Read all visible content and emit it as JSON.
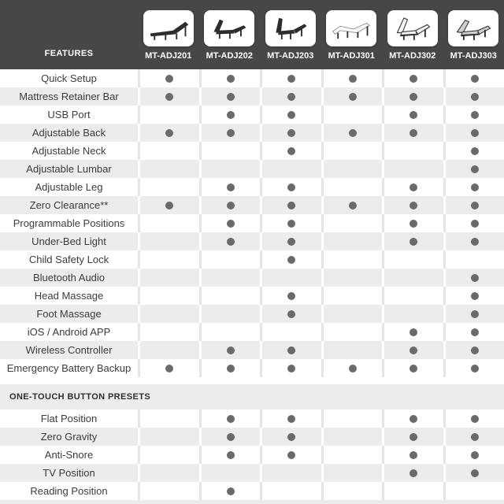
{
  "chart_data": {
    "type": "table",
    "corner_label": "FEATURES",
    "columns": [
      "MT-ADJ201",
      "MT-ADJ202",
      "MT-ADJ203",
      "MT-ADJ301",
      "MT-ADJ302",
      "MT-ADJ303"
    ],
    "column_icons": [
      "bed-mt-adj201-icon",
      "bed-mt-adj202-icon",
      "bed-mt-adj203-icon",
      "bed-mt-adj301-icon",
      "bed-mt-adj302-icon",
      "bed-mt-adj303-icon"
    ],
    "dot_meaning": "feature-included-dot",
    "sections": [
      {
        "label": "",
        "rows": [
          {
            "feature": "Quick Setup",
            "values": [
              true,
              true,
              true,
              true,
              true,
              true
            ]
          },
          {
            "feature": "Mattress Retainer Bar",
            "values": [
              true,
              true,
              true,
              true,
              true,
              true
            ]
          },
          {
            "feature": "USB Port",
            "values": [
              false,
              true,
              true,
              false,
              true,
              true
            ]
          },
          {
            "feature": "Adjustable Back",
            "values": [
              true,
              true,
              true,
              true,
              true,
              true
            ]
          },
          {
            "feature": "Adjustable Neck",
            "values": [
              false,
              false,
              true,
              false,
              false,
              true
            ]
          },
          {
            "feature": "Adjustable Lumbar",
            "values": [
              false,
              false,
              false,
              false,
              false,
              true
            ]
          },
          {
            "feature": "Adjustable Leg",
            "values": [
              false,
              true,
              true,
              false,
              true,
              true
            ]
          },
          {
            "feature": "Zero Clearance**",
            "values": [
              true,
              true,
              true,
              true,
              true,
              true
            ]
          },
          {
            "feature": "Programmable Positions",
            "values": [
              false,
              true,
              true,
              false,
              true,
              true
            ]
          },
          {
            "feature": "Under-Bed Light",
            "values": [
              false,
              true,
              true,
              false,
              true,
              true
            ]
          },
          {
            "feature": "Child Safety Lock",
            "values": [
              false,
              false,
              true,
              false,
              false,
              false
            ]
          },
          {
            "feature": "Bluetooth Audio",
            "values": [
              false,
              false,
              false,
              false,
              false,
              true
            ]
          },
          {
            "feature": "Head Massage",
            "values": [
              false,
              false,
              true,
              false,
              false,
              true
            ]
          },
          {
            "feature": "Foot Massage",
            "values": [
              false,
              false,
              true,
              false,
              false,
              true
            ]
          },
          {
            "feature": "iOS / Android APP",
            "values": [
              false,
              false,
              false,
              false,
              true,
              true
            ]
          },
          {
            "feature": "Wireless Controller",
            "values": [
              false,
              true,
              true,
              false,
              true,
              true
            ]
          },
          {
            "feature": "Emergency Battery Backup",
            "values": [
              true,
              true,
              true,
              true,
              true,
              true
            ]
          }
        ]
      },
      {
        "label": "ONE-TOUCH BUTTON PRESETS",
        "rows": [
          {
            "feature": "Flat Position",
            "values": [
              false,
              true,
              true,
              false,
              true,
              true
            ]
          },
          {
            "feature": "Zero Gravity",
            "values": [
              false,
              true,
              true,
              false,
              true,
              true
            ]
          },
          {
            "feature": "Anti-Snore",
            "values": [
              false,
              true,
              true,
              false,
              true,
              true
            ]
          },
          {
            "feature": "TV Position",
            "values": [
              false,
              false,
              false,
              false,
              true,
              true
            ]
          },
          {
            "feature": "Reading Position",
            "values": [
              false,
              true,
              false,
              false,
              false,
              false
            ]
          }
        ]
      }
    ]
  },
  "colors": {
    "header_bg": "#474747",
    "row_alt_bg": "#ececec",
    "divider_on_white": "#e5e5e5",
    "divider_on_gray": "#ffffff",
    "dot": "#6a6a6a",
    "label_text": "#3c3c3c",
    "section_text": "#303030",
    "header_text": "#ffffff",
    "tile_bg": "#ffffff"
  }
}
